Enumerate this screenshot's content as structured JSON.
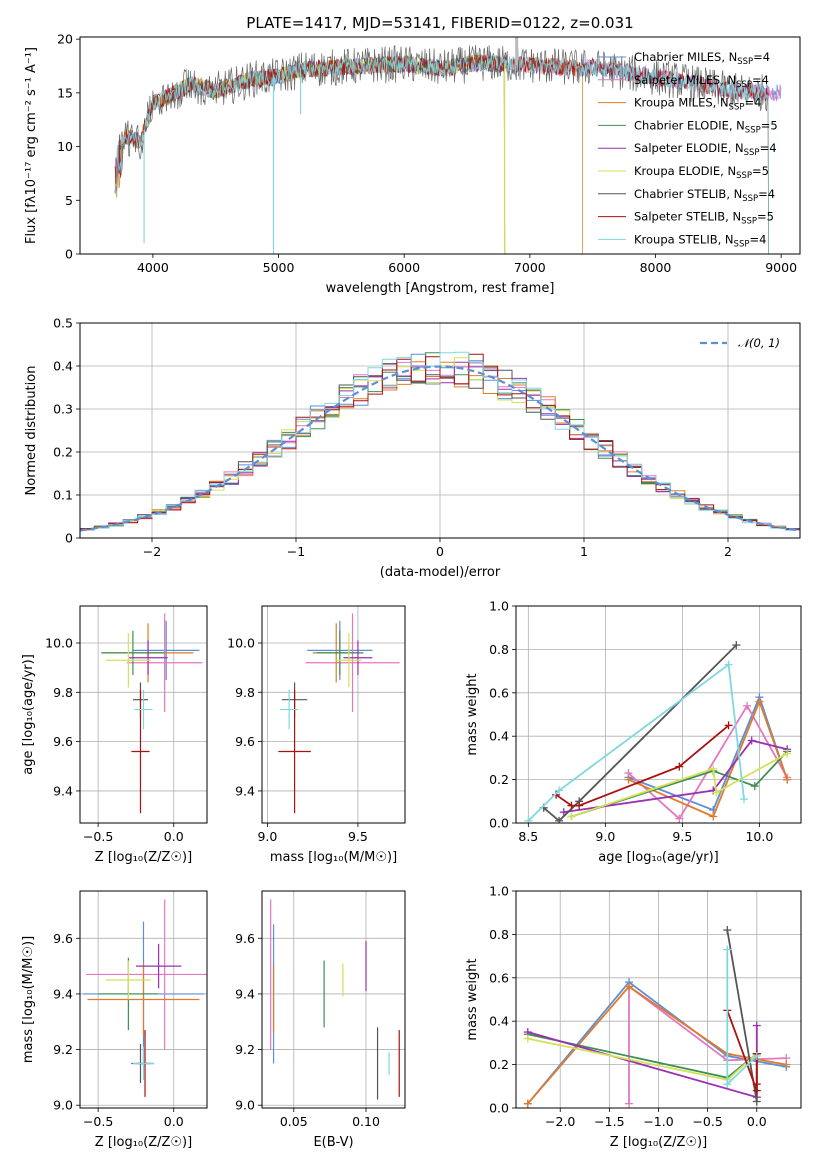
{
  "figure_title": "PLATE=1417, MJD=53141, FIBERID=0122, z=0.031",
  "palette": [
    "#5b8fd6",
    "#e377c2",
    "#e07b2b",
    "#3f8f55",
    "#9b30b3",
    "#d4e157",
    "#555555",
    "#aa1111",
    "#7fd8e0"
  ],
  "chart_data": [
    {
      "id": "spectrum",
      "type": "line",
      "title": "PLATE=1417, MJD=53141, FIBERID=0122, z=0.031",
      "xlabel": "wavelength [Angstrom, rest frame]",
      "ylabel": "Flux [fλ10⁻¹⁷ erg cm⁻² s⁻¹ A⁻¹]",
      "xlim": [
        3420,
        9150
      ],
      "ylim": [
        0,
        20.2
      ],
      "xticks": [
        4000,
        5000,
        6000,
        7000,
        8000,
        9000
      ],
      "yticks": [
        0,
        5,
        10,
        15,
        20
      ],
      "grid": false,
      "legend": "upper-right",
      "anchors_x": [
        3700,
        3780,
        3900,
        4000,
        4100,
        4300,
        4500,
        4800,
        5000,
        5200,
        5500,
        5800,
        6000,
        6300,
        6600,
        7000,
        7400,
        7500,
        7800,
        8200,
        8600,
        8900
      ],
      "anchors_y": [
        7.0,
        11.0,
        10.5,
        14.0,
        14.5,
        15.8,
        15.2,
        16.3,
        16.5,
        17.2,
        17.4,
        17.6,
        17.7,
        17.3,
        17.8,
        17.6,
        17.3,
        17.4,
        16.8,
        16.1,
        15.2,
        15.0
      ],
      "series": [
        {
          "name": "Chabrier MILES, N_SSP=4",
          "legend_label": "Chabrier MILES, N",
          "legend_sub": "SSP",
          "legend_tail": "=4",
          "color": "#5b8fd6",
          "xmax": 9000
        },
        {
          "name": "Salpeter MILES, N_SSP=4",
          "legend_label": "Salpeter MILES, N",
          "legend_sub": "SSP",
          "legend_tail": "=4",
          "color": "#e377c2",
          "xmax": 9000
        },
        {
          "name": "Kroupa MILES, N_SSP=4",
          "legend_label": "Kroupa MILES, N",
          "legend_sub": "SSP",
          "legend_tail": "=4",
          "color": "#e07b2b",
          "xmax": 7420
        },
        {
          "name": "Chabrier ELODIE, N_SSP=5",
          "legend_label": "Chabrier ELODIE, N",
          "legend_sub": "SSP",
          "legend_tail": "=5",
          "color": "#3f8f55",
          "xmax": 6800
        },
        {
          "name": "Salpeter ELODIE, N_SSP=4",
          "legend_label": "Salpeter ELODIE, N",
          "legend_sub": "SSP",
          "legend_tail": "=4",
          "color": "#9b30b3",
          "xmax": 6800
        },
        {
          "name": "Kroupa ELODIE, N_SSP=5",
          "legend_label": "Kroupa ELODIE, N",
          "legend_sub": "SSP",
          "legend_tail": "=5",
          "color": "#d4e157",
          "xmax": 6800
        },
        {
          "name": "Chabrier STELIB, N_SSP=4",
          "legend_label": "Chabrier STELIB, N",
          "legend_sub": "SSP",
          "legend_tail": "=4",
          "color": "#555555",
          "xmax": 8900
        },
        {
          "name": "Salpeter STELIB, N_SSP=5",
          "legend_label": "Salpeter STELIB, N",
          "legend_sub": "SSP",
          "legend_tail": "=5",
          "color": "#aa1111",
          "xmax": 8900
        },
        {
          "name": "Kroupa STELIB, N_SSP=4",
          "legend_label": "Kroupa STELIB, N",
          "legend_sub": "SSP",
          "legend_tail": "=4",
          "color": "#7fd8e0",
          "xmax": 8900
        }
      ]
    },
    {
      "id": "residuals",
      "type": "step-histogram",
      "xlabel": "(data-model)/error",
      "ylabel": "Normed distribution",
      "xlim": [
        -2.5,
        2.5
      ],
      "ylim": [
        0,
        0.5
      ],
      "xticks": [
        -2,
        -1,
        0,
        1,
        2
      ],
      "yticks": [
        0,
        0.1,
        0.2,
        0.3,
        0.4,
        0.5
      ],
      "xtick_labels": [
        "−2",
        "−1",
        "0",
        "1",
        "2"
      ],
      "grid": true,
      "legend": "upper-right",
      "reference": {
        "name": "𝒩(0, 1)",
        "color": "#5b8fd6",
        "mean": 0,
        "sigma": 1
      },
      "bin_width": 0.1
    },
    {
      "id": "age-vs-Z",
      "type": "errorbar",
      "xlabel": "Z [log₁₀(Z/Z☉)]",
      "ylabel": "age  [log₁₀(age/yr)]",
      "xlim": [
        -0.62,
        0.22
      ],
      "ylim": [
        9.27,
        10.15
      ],
      "xticks": [
        -0.5,
        0.0
      ],
      "xtick_labels": [
        "−0.5",
        "0.0"
      ],
      "yticks": [
        9.4,
        9.6,
        9.8,
        10.0
      ],
      "ytick_labels": [
        "9.4",
        "9.6",
        "9.8",
        "10.0"
      ],
      "grid": true,
      "points": [
        {
          "x": -0.05,
          "y": 9.97,
          "xerr": 0.22,
          "yerr": 0.12
        },
        {
          "x": -0.06,
          "y": 9.92,
          "xerr": 0.25,
          "yerr": 0.2
        },
        {
          "x": -0.17,
          "y": 9.96,
          "xerr": 0.3,
          "yerr": 0.12
        },
        {
          "x": -0.27,
          "y": 9.96,
          "xerr": 0.21,
          "yerr": 0.09
        },
        {
          "x": -0.17,
          "y": 9.94,
          "xerr": 0.13,
          "yerr": 0.07
        },
        {
          "x": -0.3,
          "y": 9.93,
          "xerr": 0.15,
          "yerr": 0.11
        },
        {
          "x": -0.22,
          "y": 9.77,
          "xerr": 0.05,
          "yerr": 0.07
        },
        {
          "x": -0.22,
          "y": 9.56,
          "xerr": 0.06,
          "yerr": 0.25
        },
        {
          "x": -0.2,
          "y": 9.73,
          "xerr": 0.06,
          "yerr": 0.08
        }
      ]
    },
    {
      "id": "age-vs-mass",
      "type": "errorbar",
      "xlabel": "mass [log₁₀(M/M☉)]",
      "ylabel": "",
      "xlim": [
        8.97,
        9.76
      ],
      "ylim": [
        9.27,
        10.15
      ],
      "xticks": [
        9.0,
        9.5
      ],
      "xtick_labels": [
        "9.0",
        "9.5"
      ],
      "yticks": [
        9.4,
        9.6,
        9.8,
        10.0
      ],
      "ytick_labels": [
        "9.4",
        "9.6",
        "9.8",
        "10.0"
      ],
      "grid": true,
      "points": [
        {
          "x": 9.4,
          "y": 9.97,
          "xerr": 0.18,
          "yerr": 0.12
        },
        {
          "x": 9.47,
          "y": 9.92,
          "xerr": 0.26,
          "yerr": 0.2
        },
        {
          "x": 9.38,
          "y": 9.96,
          "xerr": 0.13,
          "yerr": 0.12
        },
        {
          "x": 9.4,
          "y": 9.96,
          "xerr": 0.13,
          "yerr": 0.09
        },
        {
          "x": 9.5,
          "y": 9.94,
          "xerr": 0.08,
          "yerr": 0.07
        },
        {
          "x": 9.45,
          "y": 9.93,
          "xerr": 0.07,
          "yerr": 0.11
        },
        {
          "x": 9.15,
          "y": 9.77,
          "xerr": 0.07,
          "yerr": 0.07
        },
        {
          "x": 9.15,
          "y": 9.56,
          "xerr": 0.09,
          "yerr": 0.25
        },
        {
          "x": 9.12,
          "y": 9.73,
          "xerr": 0.05,
          "yerr": 0.08
        }
      ]
    },
    {
      "id": "mass-weight-vs-age",
      "type": "line",
      "xlabel": "age  [log₁₀(age/yr)]",
      "ylabel": "mass weight",
      "xlim": [
        8.42,
        10.27
      ],
      "ylim": [
        0,
        1.0
      ],
      "xticks": [
        8.5,
        9.0,
        9.5,
        10.0
      ],
      "xtick_labels": [
        "8.5",
        "9.0",
        "9.5",
        "10.0"
      ],
      "yticks": [
        0,
        0.2,
        0.4,
        0.6,
        0.8,
        1.0
      ],
      "ytick_labels": [
        "0.0",
        "0.2",
        "0.4",
        "0.6",
        "0.8",
        "1.0"
      ],
      "grid": true,
      "series": [
        {
          "x": [
            9.15,
            9.7,
            10.0,
            10.18
          ],
          "y": [
            0.21,
            0.06,
            0.58,
            0.2
          ]
        },
        {
          "x": [
            9.15,
            9.48,
            9.92,
            10.18
          ],
          "y": [
            0.23,
            0.02,
            0.54,
            0.21
          ]
        },
        {
          "x": [
            9.15,
            9.7,
            10.0,
            10.18
          ],
          "y": [
            0.2,
            0.03,
            0.56,
            0.2
          ]
        },
        {
          "x": [
            8.78,
            9.7,
            9.97,
            10.18
          ],
          "y": [
            0.03,
            0.24,
            0.17,
            0.33
          ]
        },
        {
          "x": [
            8.73,
            9.7,
            9.95,
            10.18
          ],
          "y": [
            0.05,
            0.15,
            0.38,
            0.34
          ]
        },
        {
          "x": [
            8.78,
            9.7,
            9.72,
            10.18
          ],
          "y": [
            0.03,
            0.25,
            0.14,
            0.32
          ]
        },
        {
          "x": [
            8.6,
            8.7,
            8.83,
            9.85
          ],
          "y": [
            0.07,
            0.01,
            0.1,
            0.82
          ]
        },
        {
          "x": [
            8.68,
            8.78,
            8.83,
            9.48,
            9.8
          ],
          "y": [
            0.13,
            0.08,
            0.08,
            0.26,
            0.45
          ]
        },
        {
          "x": [
            8.5,
            8.7,
            9.8,
            9.9
          ],
          "y": [
            0.01,
            0.15,
            0.73,
            0.11
          ]
        }
      ]
    },
    {
      "id": "mass-vs-Z",
      "type": "errorbar",
      "xlabel": "Z [log₁₀(Z/Z☉)]",
      "ylabel": "mass [log₁₀(M/M☉)]",
      "xlim": [
        -0.62,
        0.22
      ],
      "ylim": [
        8.99,
        9.77
      ],
      "xticks": [
        -0.5,
        0.0
      ],
      "xtick_labels": [
        "−0.5",
        "0.0"
      ],
      "yticks": [
        9.0,
        9.2,
        9.4,
        9.6
      ],
      "ytick_labels": [
        "9.0",
        "9.2",
        "9.4",
        "9.6"
      ],
      "grid": true,
      "points": [
        {
          "x": -0.2,
          "y": 9.4,
          "xerr": 0.4,
          "yerr": 0.26
        },
        {
          "x": -0.06,
          "y": 9.47,
          "xerr": 0.52,
          "yerr": 0.27
        },
        {
          "x": -0.2,
          "y": 9.38,
          "xerr": 0.37,
          "yerr": 0.13
        },
        {
          "x": -0.3,
          "y": 9.4,
          "xerr": 0.2,
          "yerr": 0.13
        },
        {
          "x": -0.1,
          "y": 9.5,
          "xerr": 0.15,
          "yerr": 0.08
        },
        {
          "x": -0.3,
          "y": 9.45,
          "xerr": 0.15,
          "yerr": 0.07
        },
        {
          "x": -0.22,
          "y": 9.15,
          "xerr": 0.06,
          "yerr": 0.07
        },
        {
          "x": -0.19,
          "y": 9.15,
          "xerr": 0.06,
          "yerr": 0.12
        },
        {
          "x": -0.2,
          "y": 9.15,
          "xerr": 0.07,
          "yerr": 0.06
        }
      ]
    },
    {
      "id": "mass-vs-EBV",
      "type": "errorbar",
      "xlabel": "E(B-V)",
      "ylabel": "",
      "xlim": [
        0.028,
        0.127
      ],
      "ylim": [
        8.99,
        9.77
      ],
      "xticks": [
        0.05,
        0.1
      ],
      "xtick_labels": [
        "0.05",
        "0.10"
      ],
      "yticks": [
        9.0,
        9.2,
        9.4,
        9.6
      ],
      "ytick_labels": [
        "9.0",
        "9.2",
        "9.4",
        "9.6"
      ],
      "grid": true,
      "points": [
        {
          "x": 0.036,
          "y": 9.4,
          "xerr": 0,
          "yerr": 0.25
        },
        {
          "x": 0.034,
          "y": 9.47,
          "xerr": 0,
          "yerr": 0.27
        },
        {
          "x": 0.036,
          "y": 9.38,
          "xerr": 0,
          "yerr": 0.12
        },
        {
          "x": 0.071,
          "y": 9.4,
          "xerr": 0,
          "yerr": 0.12
        },
        {
          "x": 0.1,
          "y": 9.5,
          "xerr": 0,
          "yerr": 0.09
        },
        {
          "x": 0.084,
          "y": 9.45,
          "xerr": 0,
          "yerr": 0.06
        },
        {
          "x": 0.108,
          "y": 9.15,
          "xerr": 0,
          "yerr": 0.13
        },
        {
          "x": 0.123,
          "y": 9.15,
          "xerr": 0,
          "yerr": 0.12
        },
        {
          "x": 0.116,
          "y": 9.15,
          "xerr": 0,
          "yerr": 0.04
        }
      ]
    },
    {
      "id": "mass-weight-vs-Z",
      "type": "line",
      "xlabel": "Z [log₁₀(Z/Z☉)]",
      "ylabel": "mass weight",
      "xlim": [
        -2.45,
        0.45
      ],
      "ylim": [
        0,
        1.0
      ],
      "xticks": [
        -2.0,
        -1.5,
        -1.0,
        -0.5,
        0.0
      ],
      "xtick_labels": [
        "−2.0",
        "−1.5",
        "−1.0",
        "−0.5",
        "0.0"
      ],
      "yticks": [
        0,
        0.2,
        0.4,
        0.6,
        0.8,
        1.0
      ],
      "ytick_labels": [
        "0.0",
        "0.2",
        "0.4",
        "0.6",
        "0.8",
        "1.0"
      ],
      "grid": true,
      "series": [
        {
          "x": [
            -2.33,
            -1.3,
            -0.3,
            0.3
          ],
          "y": [
            0.02,
            0.58,
            0.24,
            0.19
          ]
        },
        {
          "x": [
            -1.3,
            -1.3,
            -0.3,
            0.3
          ],
          "y": [
            0.02,
            0.56,
            0.22,
            0.23
          ]
        },
        {
          "x": [
            -2.33,
            -1.3,
            -0.3,
            0.3
          ],
          "y": [
            0.02,
            0.56,
            0.25,
            0.2
          ]
        },
        {
          "x": [
            -2.33,
            -0.3,
            0.0
          ],
          "y": [
            0.34,
            0.14,
            0.25
          ]
        },
        {
          "x": [
            -2.33,
            0.0,
            0.0
          ],
          "y": [
            0.35,
            0.05,
            0.38
          ]
        },
        {
          "x": [
            -2.33,
            -0.3,
            0.0
          ],
          "y": [
            0.32,
            0.13,
            0.25
          ]
        },
        {
          "x": [
            -0.3,
            0.0,
            0.0
          ],
          "y": [
            0.82,
            0.03,
            0.25
          ]
        },
        {
          "x": [
            -0.3,
            0.0,
            0.0,
            0.0
          ],
          "y": [
            0.45,
            0.08,
            0.11,
            0.25
          ]
        },
        {
          "x": [
            -0.3,
            -0.3,
            0.0
          ],
          "y": [
            0.73,
            0.11,
            0.24
          ]
        }
      ]
    }
  ]
}
